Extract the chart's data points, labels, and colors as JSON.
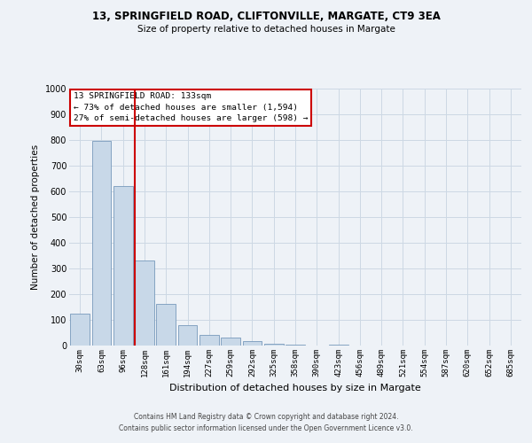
{
  "title1": "13, SPRINGFIELD ROAD, CLIFTONVILLE, MARGATE, CT9 3EA",
  "title2": "Size of property relative to detached houses in Margate",
  "xlabel": "Distribution of detached houses by size in Margate",
  "ylabel": "Number of detached properties",
  "bar_labels": [
    "30sqm",
    "63sqm",
    "96sqm",
    "128sqm",
    "161sqm",
    "194sqm",
    "227sqm",
    "259sqm",
    "292sqm",
    "325sqm",
    "358sqm",
    "390sqm",
    "423sqm",
    "456sqm",
    "489sqm",
    "521sqm",
    "554sqm",
    "587sqm",
    "620sqm",
    "652sqm",
    "685sqm"
  ],
  "bar_values": [
    125,
    795,
    620,
    330,
    163,
    80,
    42,
    30,
    18,
    8,
    3,
    0,
    5,
    0,
    0,
    0,
    0,
    0,
    0,
    0,
    0
  ],
  "bar_color": "#c8d8e8",
  "bar_edge_color": "#7799bb",
  "annotation_title": "13 SPRINGFIELD ROAD: 133sqm",
  "annotation_line1": "← 73% of detached houses are smaller (1,594)",
  "annotation_line2": "27% of semi-detached houses are larger (598) →",
  "annotation_box_color": "#ffffff",
  "annotation_box_edge": "#cc0000",
  "property_line_color": "#cc0000",
  "ylim": [
    0,
    1000
  ],
  "yticks": [
    0,
    100,
    200,
    300,
    400,
    500,
    600,
    700,
    800,
    900,
    1000
  ],
  "grid_color": "#ccd8e4",
  "bg_color": "#eef2f7",
  "footer1": "Contains HM Land Registry data © Crown copyright and database right 2024.",
  "footer2": "Contains public sector information licensed under the Open Government Licence v3.0."
}
